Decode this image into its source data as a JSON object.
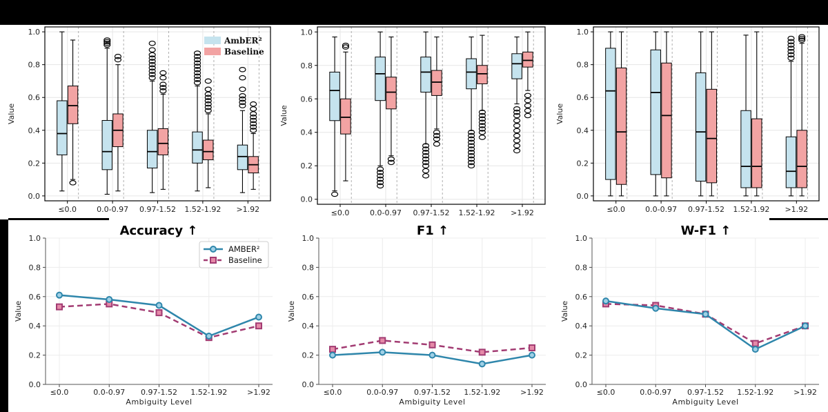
{
  "chart_data": [
    {
      "type": "box",
      "id": "box-accuracy",
      "ylabel": "Value",
      "ylim": [
        -0.03,
        1.03
      ],
      "yticks": [
        0.0,
        0.2,
        0.4,
        0.6,
        0.8,
        1.0
      ],
      "categories": [
        "≤0.0",
        "0.0-0.97",
        "0.97-1.52",
        "1.52-1.92",
        ">1.92"
      ],
      "legend": [
        "AmbER²",
        "Baseline"
      ],
      "series": [
        {
          "name": "AmbER²",
          "color": "#c5e3ee",
          "boxes": [
            {
              "q1": 0.25,
              "med": 0.38,
              "q3": 0.58,
              "wlo": 0.03,
              "whi": 1.0,
              "out": []
            },
            {
              "q1": 0.16,
              "med": 0.27,
              "q3": 0.46,
              "wlo": 0.01,
              "whi": 0.9,
              "out": [
                0.92,
                0.93,
                0.94,
                0.95
              ]
            },
            {
              "q1": 0.17,
              "med": 0.27,
              "q3": 0.4,
              "wlo": 0.02,
              "whi": 0.7,
              "out": [
                0.72,
                0.74,
                0.76,
                0.78,
                0.8,
                0.82,
                0.84,
                0.86,
                0.89,
                0.93
              ]
            },
            {
              "q1": 0.2,
              "med": 0.28,
              "q3": 0.39,
              "wlo": 0.03,
              "whi": 0.67,
              "out": [
                0.69,
                0.71,
                0.73,
                0.75,
                0.77,
                0.79,
                0.81,
                0.83,
                0.85,
                0.87
              ]
            },
            {
              "q1": 0.16,
              "med": 0.24,
              "q3": 0.31,
              "wlo": 0.02,
              "whi": 0.52,
              "out": [
                0.55,
                0.57,
                0.59,
                0.61,
                0.65,
                0.72,
                0.77
              ]
            }
          ]
        },
        {
          "name": "Baseline",
          "color": "#f2a3a3",
          "boxes": [
            {
              "q1": 0.44,
              "med": 0.55,
              "q3": 0.67,
              "wlo": 0.1,
              "whi": 0.95,
              "out": [
                0.08
              ]
            },
            {
              "q1": 0.3,
              "med": 0.4,
              "q3": 0.5,
              "wlo": 0.03,
              "whi": 0.8,
              "out": [
                0.83,
                0.85
              ]
            },
            {
              "q1": 0.25,
              "med": 0.32,
              "q3": 0.41,
              "wlo": 0.04,
              "whi": 0.62,
              "out": [
                0.64,
                0.66,
                0.68,
                0.72,
                0.75
              ]
            },
            {
              "q1": 0.22,
              "med": 0.27,
              "q3": 0.34,
              "wlo": 0.05,
              "whi": 0.5,
              "out": [
                0.52,
                0.54,
                0.56,
                0.58,
                0.6,
                0.62,
                0.65,
                0.7
              ]
            },
            {
              "q1": 0.14,
              "med": 0.19,
              "q3": 0.24,
              "wlo": 0.04,
              "whi": 0.38,
              "out": [
                0.4,
                0.42,
                0.44,
                0.46,
                0.48,
                0.5,
                0.53,
                0.56
              ]
            }
          ]
        }
      ]
    },
    {
      "type": "box",
      "id": "box-f1",
      "ylabel": "Value",
      "ylim": [
        -0.03,
        1.03
      ],
      "yticks": [
        0.0,
        0.2,
        0.4,
        0.6,
        0.8,
        1.0
      ],
      "categories": [
        "≤0.0",
        "0.0-0.97",
        "0.97-1.52",
        "1.52-1.92",
        ">1.92"
      ],
      "series": [
        {
          "name": "AmbER²",
          "color": "#c5e3ee",
          "boxes": [
            {
              "q1": 0.47,
              "med": 0.65,
              "q3": 0.76,
              "wlo": 0.05,
              "whi": 0.97,
              "out": [
                0.03
              ]
            },
            {
              "q1": 0.59,
              "med": 0.75,
              "q3": 0.85,
              "wlo": 0.2,
              "whi": 1.0,
              "out": [
                0.08,
                0.1,
                0.12,
                0.14,
                0.16,
                0.18
              ]
            },
            {
              "q1": 0.64,
              "med": 0.76,
              "q3": 0.85,
              "wlo": 0.33,
              "whi": 1.0,
              "out": [
                0.14,
                0.17,
                0.2,
                0.22,
                0.24,
                0.26,
                0.28,
                0.3,
                0.32
              ]
            },
            {
              "q1": 0.66,
              "med": 0.76,
              "q3": 0.84,
              "wlo": 0.41,
              "whi": 0.97,
              "out": [
                0.2,
                0.22,
                0.24,
                0.26,
                0.28,
                0.3,
                0.32,
                0.34,
                0.36,
                0.38,
                0.4
              ]
            },
            {
              "q1": 0.72,
              "med": 0.81,
              "q3": 0.87,
              "wlo": 0.57,
              "whi": 0.97,
              "out": [
                0.29,
                0.32,
                0.35,
                0.38,
                0.41,
                0.44,
                0.47,
                0.5,
                0.52,
                0.54
              ]
            }
          ]
        },
        {
          "name": "Baseline",
          "color": "#f2a3a3",
          "boxes": [
            {
              "q1": 0.39,
              "med": 0.49,
              "q3": 0.6,
              "wlo": 0.11,
              "whi": 0.88,
              "out": [
                0.91,
                0.92
              ]
            },
            {
              "q1": 0.54,
              "med": 0.64,
              "q3": 0.73,
              "wlo": 0.26,
              "whi": 0.97,
              "out": [
                0.22,
                0.24
              ]
            },
            {
              "q1": 0.62,
              "med": 0.7,
              "q3": 0.77,
              "wlo": 0.42,
              "whi": 0.97,
              "out": [
                0.33,
                0.36,
                0.38,
                0.4
              ]
            },
            {
              "q1": 0.69,
              "med": 0.75,
              "q3": 0.8,
              "wlo": 0.53,
              "whi": 0.98,
              "out": [
                0.37,
                0.4,
                0.42,
                0.44,
                0.46,
                0.48,
                0.5,
                0.52
              ]
            },
            {
              "q1": 0.79,
              "med": 0.83,
              "q3": 0.88,
              "wlo": 0.65,
              "whi": 1.0,
              "out": [
                0.5,
                0.53,
                0.56,
                0.59,
                0.62
              ]
            }
          ]
        }
      ]
    },
    {
      "type": "box",
      "id": "box-wf1",
      "ylabel": "Value",
      "ylim": [
        -0.03,
        1.03
      ],
      "yticks": [
        0.0,
        0.2,
        0.4,
        0.6,
        0.8,
        1.0
      ],
      "categories": [
        "≤0.0",
        "0.0-0.97",
        "0.97-1.52",
        "1.52-1.92",
        ">1.92"
      ],
      "series": [
        {
          "name": "AmbER²",
          "color": "#c5e3ee",
          "boxes": [
            {
              "q1": 0.1,
              "med": 0.64,
              "q3": 0.9,
              "wlo": 0.0,
              "whi": 1.0,
              "out": []
            },
            {
              "q1": 0.13,
              "med": 0.63,
              "q3": 0.89,
              "wlo": 0.0,
              "whi": 1.0,
              "out": []
            },
            {
              "q1": 0.09,
              "med": 0.39,
              "q3": 0.75,
              "wlo": 0.0,
              "whi": 1.0,
              "out": []
            },
            {
              "q1": 0.05,
              "med": 0.18,
              "q3": 0.52,
              "wlo": 0.0,
              "whi": 0.98,
              "out": []
            },
            {
              "q1": 0.05,
              "med": 0.15,
              "q3": 0.36,
              "wlo": 0.0,
              "whi": 0.82,
              "out": [
                0.84,
                0.86,
                0.88,
                0.9,
                0.92,
                0.94,
                0.96
              ]
            }
          ]
        },
        {
          "name": "Baseline",
          "color": "#f2a3a3",
          "boxes": [
            {
              "q1": 0.07,
              "med": 0.39,
              "q3": 0.78,
              "wlo": 0.0,
              "whi": 1.0,
              "out": []
            },
            {
              "q1": 0.11,
              "med": 0.49,
              "q3": 0.81,
              "wlo": 0.0,
              "whi": 1.0,
              "out": []
            },
            {
              "q1": 0.08,
              "med": 0.35,
              "q3": 0.65,
              "wlo": 0.0,
              "whi": 1.0,
              "out": []
            },
            {
              "q1": 0.05,
              "med": 0.18,
              "q3": 0.47,
              "wlo": 0.0,
              "whi": 1.0,
              "out": []
            },
            {
              "q1": 0.05,
              "med": 0.18,
              "q3": 0.4,
              "wlo": 0.0,
              "whi": 0.93,
              "out": [
                0.95,
                0.96,
                0.97
              ]
            }
          ]
        }
      ]
    },
    {
      "type": "line",
      "id": "line-accuracy",
      "title": "Accuracy ↑",
      "xlabel": "Ambiguity Level",
      "ylabel": "Value",
      "ylim": [
        0.0,
        1.0
      ],
      "yticks": [
        0.0,
        0.2,
        0.4,
        0.6,
        0.8,
        1.0
      ],
      "categories": [
        "≤0.0",
        "0.0-0.97",
        "0.97-1.52",
        "1.52-1.92",
        ">1.92"
      ],
      "legend": [
        "AMBER²",
        "Baseline"
      ],
      "series": [
        {
          "name": "AMBER²",
          "color": "#2e86ab",
          "marker": "circle",
          "dashed": false,
          "values": [
            0.61,
            0.58,
            0.54,
            0.33,
            0.46
          ]
        },
        {
          "name": "Baseline",
          "color": "#a23b72",
          "marker": "square",
          "dashed": true,
          "values": [
            0.53,
            0.55,
            0.49,
            0.32,
            0.4
          ]
        }
      ]
    },
    {
      "type": "line",
      "id": "line-f1",
      "title": "F1 ↑",
      "xlabel": "Ambiguity Level",
      "ylabel": "Value",
      "ylim": [
        0.0,
        1.0
      ],
      "yticks": [
        0.0,
        0.2,
        0.4,
        0.6,
        0.8,
        1.0
      ],
      "categories": [
        "≤0.0",
        "0.0-0.97",
        "0.97-1.52",
        "1.52-1.92",
        ">1.92"
      ],
      "series": [
        {
          "name": "AMBER²",
          "color": "#2e86ab",
          "marker": "circle",
          "dashed": false,
          "values": [
            0.2,
            0.22,
            0.2,
            0.14,
            0.2
          ]
        },
        {
          "name": "Baseline",
          "color": "#a23b72",
          "marker": "square",
          "dashed": true,
          "values": [
            0.24,
            0.3,
            0.27,
            0.22,
            0.25
          ]
        }
      ]
    },
    {
      "type": "line",
      "id": "line-wf1",
      "title": "W-F1 ↑",
      "xlabel": "Ambiguity Level",
      "ylabel": "Value",
      "ylim": [
        0.0,
        1.0
      ],
      "yticks": [
        0.0,
        0.2,
        0.4,
        0.6,
        0.8,
        1.0
      ],
      "categories": [
        "≤0.0",
        "0.0-0.97",
        "0.97-1.52",
        "1.52-1.92",
        ">1.92"
      ],
      "series": [
        {
          "name": "AMBER²",
          "color": "#2e86ab",
          "marker": "circle",
          "dashed": false,
          "values": [
            0.57,
            0.52,
            0.48,
            0.24,
            0.4
          ]
        },
        {
          "name": "Baseline",
          "color": "#a23b72",
          "marker": "square",
          "dashed": true,
          "values": [
            0.55,
            0.54,
            0.48,
            0.28,
            0.4
          ]
        }
      ]
    }
  ]
}
